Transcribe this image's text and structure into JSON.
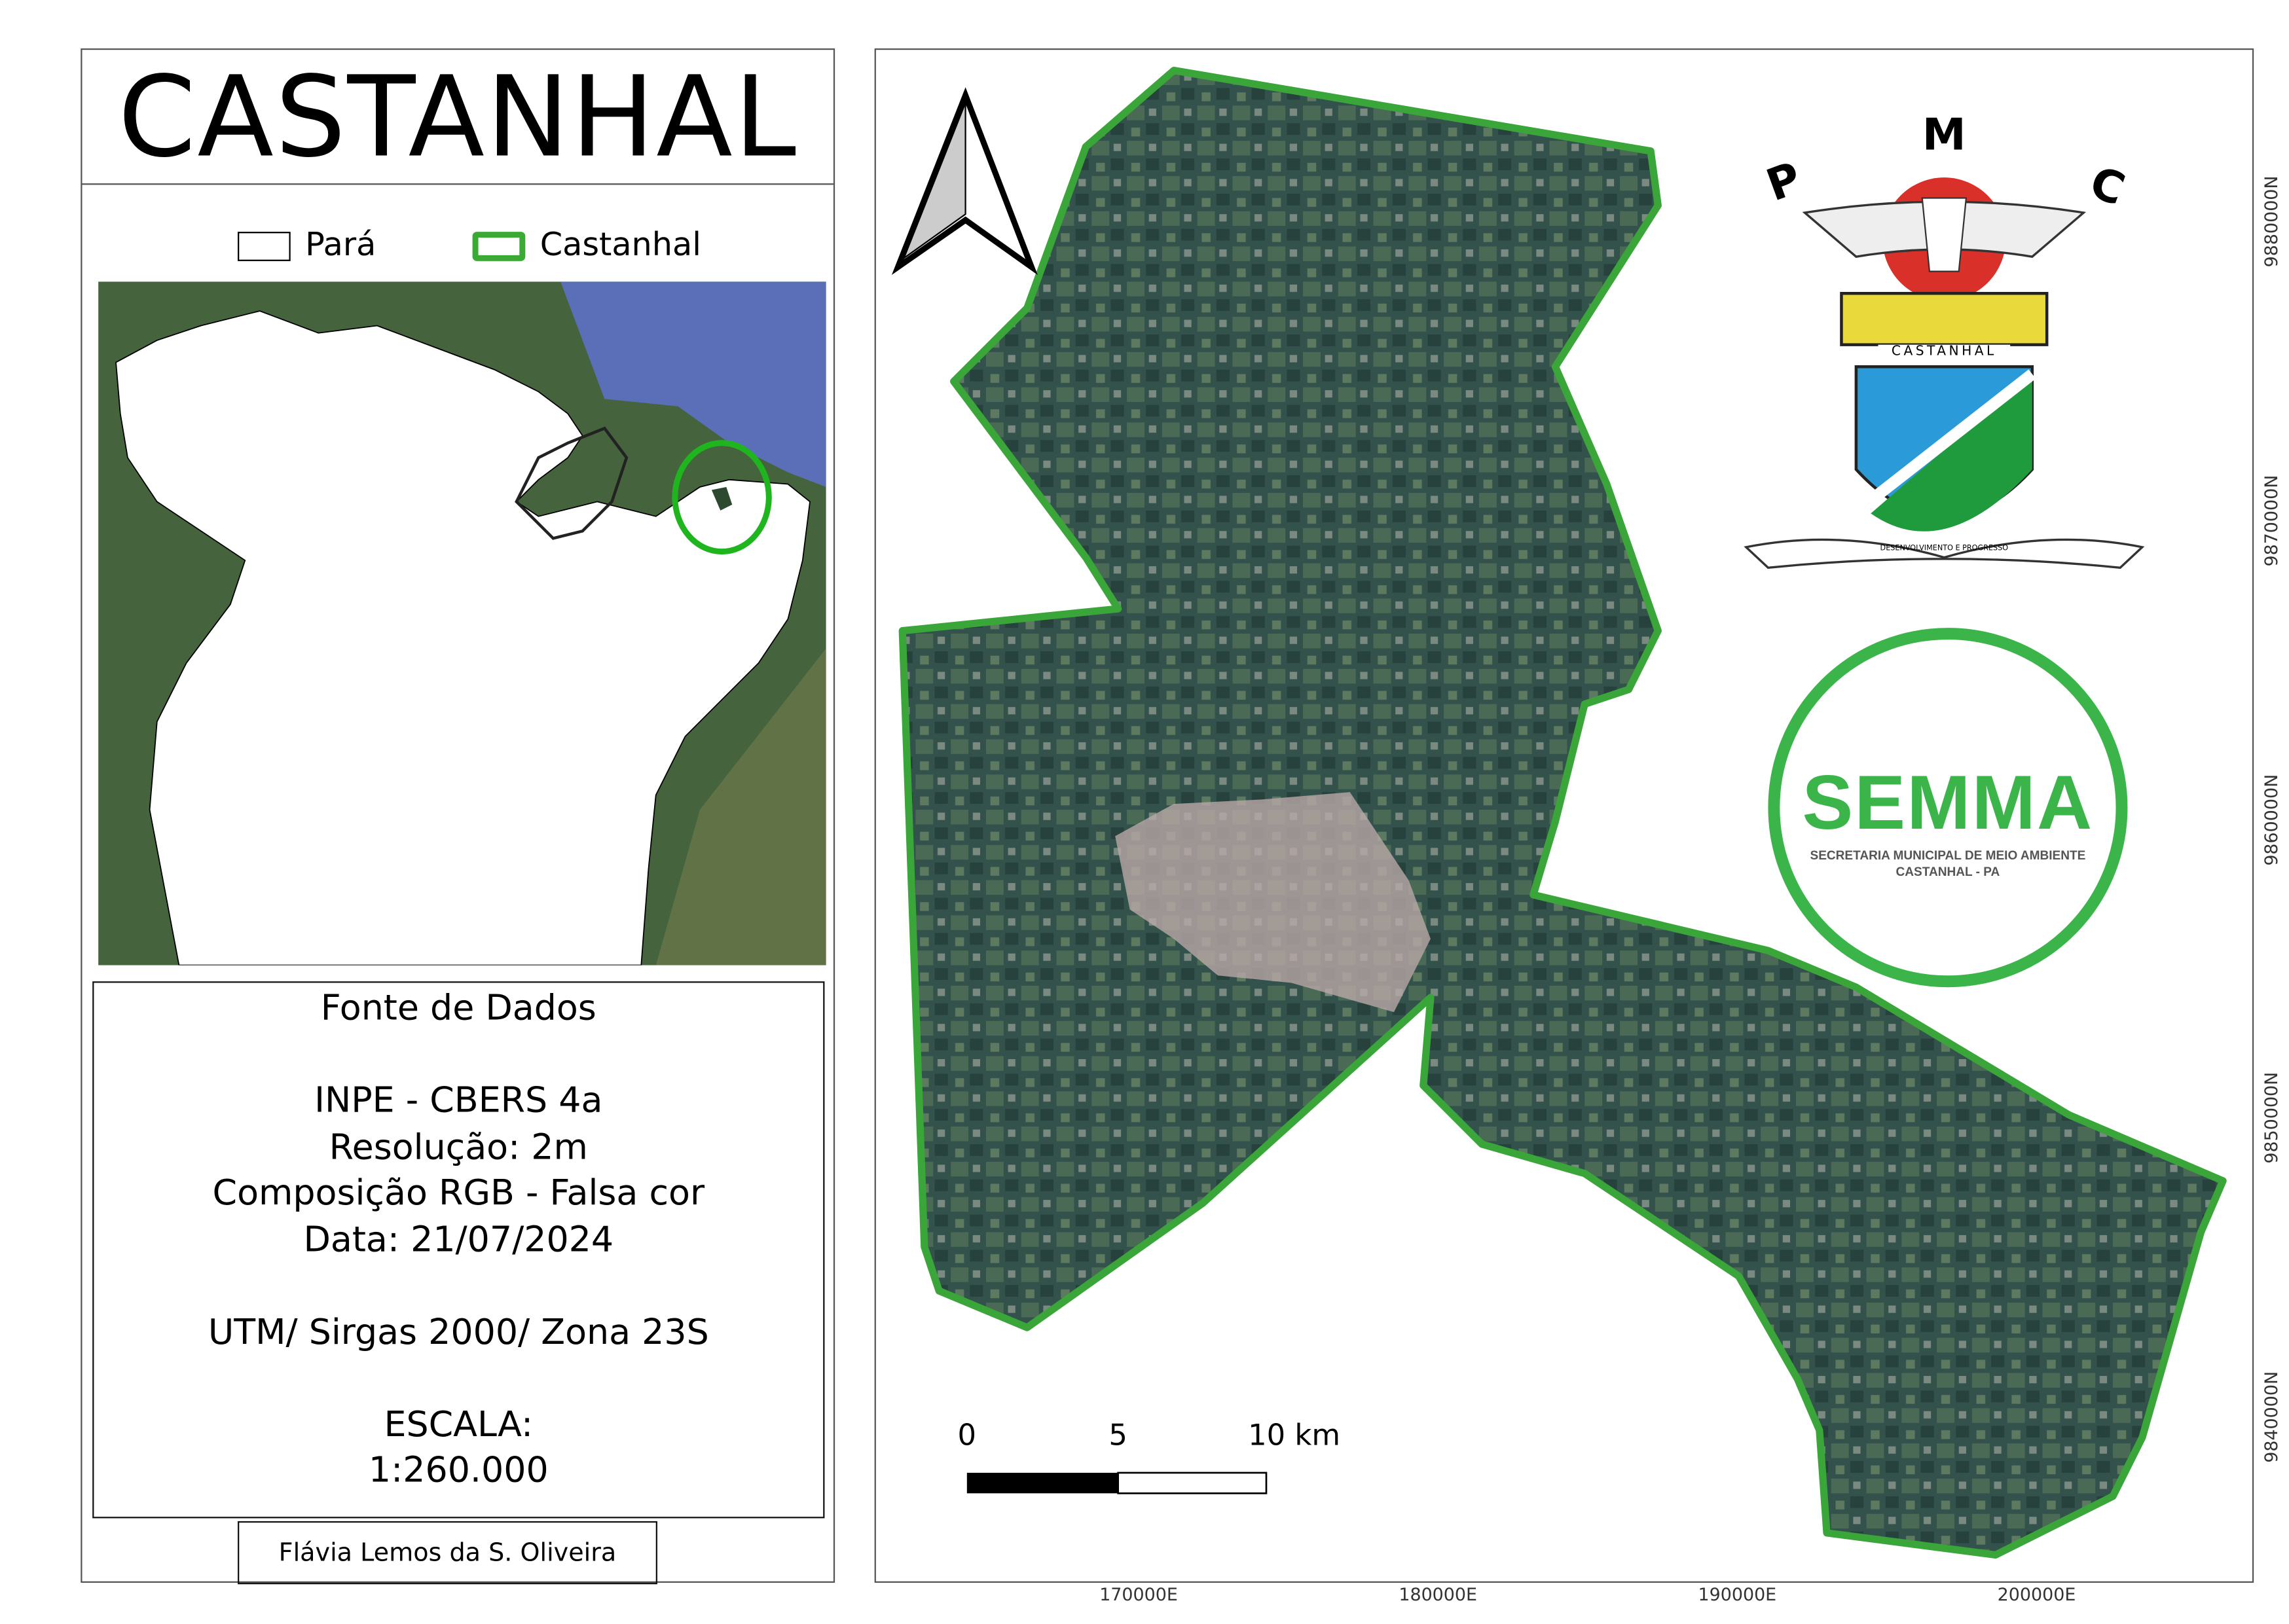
{
  "title": "CASTANHAL",
  "legend": [
    {
      "label": "Pará",
      "fill": "#ffffff",
      "stroke": "#000000"
    },
    {
      "label": "Castanhal",
      "fill": "#ffffff",
      "stroke": "#3aaa35"
    }
  ],
  "info": {
    "heading": "Fonte de Dados",
    "source": "INPE - CBERS 4a",
    "resolution": "Resolução: 2m",
    "composition": "Composição RGB - Falsa cor",
    "date": "Data: 21/07/2024",
    "projection": "UTM/ Sirgas 2000/ Zona 23S",
    "scale_label": "ESCALA:",
    "scale_value": "1:260.000"
  },
  "author": "Flávia Lemos da S. Oliveira",
  "map": {
    "boundary_color": "#3aa63a",
    "x_ticks": [
      "170000E",
      "180000E",
      "190000E",
      "200000E"
    ],
    "y_ticks": [
      "9880000N",
      "9870000N",
      "9860000N",
      "9850000N",
      "9840000N"
    ],
    "scalebar": {
      "labels": [
        "0",
        "5",
        "10 km"
      ]
    },
    "north_arrow": "north-arrow-icon"
  },
  "logos": {
    "pmc": {
      "letters": [
        "P",
        "M",
        "C"
      ],
      "banner_top": "CASTANHAL",
      "banner_bottom": "DESENVOLVIMENTO E PROGRESSO"
    },
    "semma": {
      "name": "SEMMA",
      "line1": "SECRETARIA MUNICIPAL DE MEIO AMBIENTE",
      "line2": "CASTANHAL - PA",
      "color": "#3bb54a"
    }
  }
}
